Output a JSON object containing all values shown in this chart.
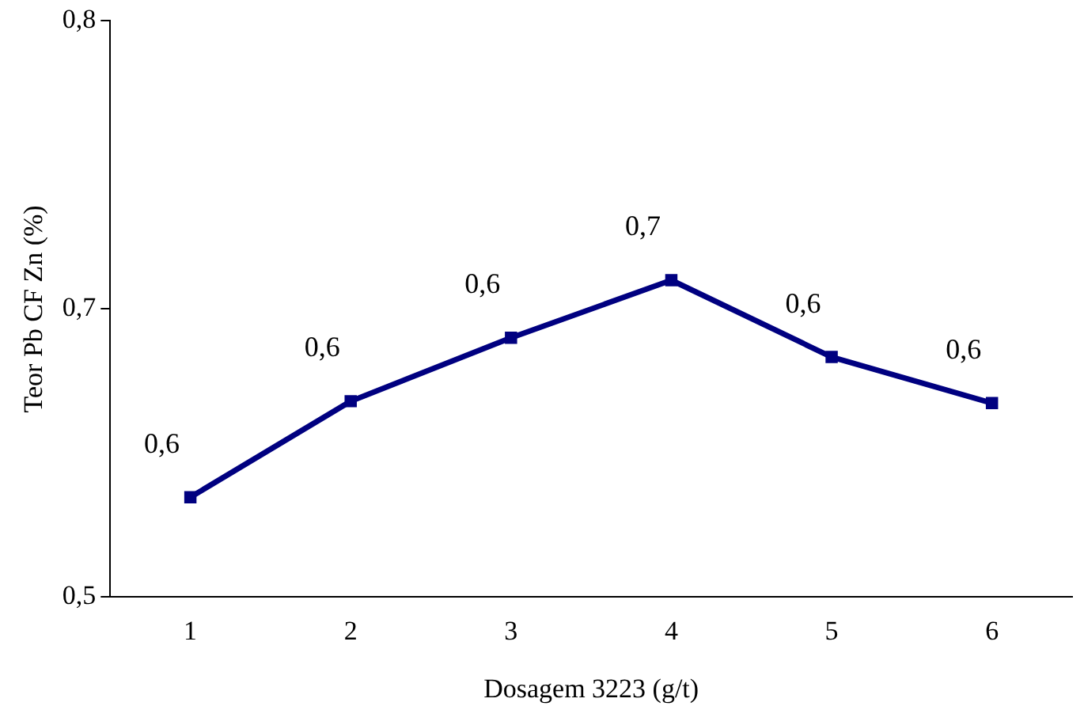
{
  "chart_data": {
    "type": "line",
    "xlabel": "Dosagem 3223 (g/t)",
    "ylabel": "Teor Pb CF Zn (%)",
    "categories": [
      "1",
      "2",
      "3",
      "4",
      "5",
      "6"
    ],
    "series": [
      {
        "color": "#000080",
        "values": [
          0.552,
          0.602,
          0.635,
          0.665,
          0.625,
          0.601
        ],
        "value_labels": [
          "0,6",
          "0,6",
          "0,6",
          "0,7",
          "0,6",
          "0,6"
        ]
      }
    ],
    "ylim": [
      0.5,
      0.8
    ],
    "yticks": [
      {
        "value": 0.5,
        "label": "0,5"
      },
      {
        "value": 0.65,
        "label": "0,7"
      },
      {
        "value": 0.8,
        "label": "0,8"
      }
    ],
    "grid": false,
    "legend": false,
    "marker": "square",
    "line_style": "solid"
  }
}
